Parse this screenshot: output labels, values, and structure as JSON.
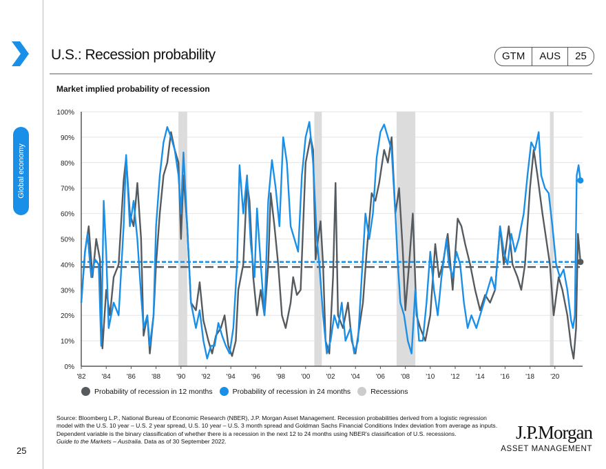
{
  "header": {
    "title": "U.S.: Recession probability",
    "badge": [
      "GTM",
      "AUS",
      "25"
    ],
    "side_tab": "Global economy",
    "page_number": "25"
  },
  "colors": {
    "accent": "#1a8fe8",
    "series_12m": "#555a5f",
    "series_24m": "#1a8fe8",
    "recession": "#dcdcdc"
  },
  "chart_data": {
    "type": "line",
    "title": "Market implied probability of recession",
    "ylim": [
      0,
      100
    ],
    "y_ticks": [
      "0%",
      "10%",
      "20%",
      "30%",
      "40%",
      "50%",
      "60%",
      "70%",
      "80%",
      "90%",
      "100%"
    ],
    "x_ticks": [
      "'82",
      "'84",
      "'86",
      "'88",
      "'90",
      "'92",
      "'94",
      "'96",
      "'98",
      "'00",
      "'02",
      "'04",
      "'06",
      "'08",
      "'10",
      "'12",
      "'14",
      "'16",
      "'18",
      "'20"
    ],
    "grid": true,
    "legend_placement": "bottom",
    "recessions": [
      [
        1989.8,
        1990.5
      ],
      [
        2000.7,
        2001.3
      ],
      [
        2007.3,
        2008.8
      ],
      [
        2019.6,
        2019.9
      ]
    ],
    "legend": [
      "Probability of recession in 12 months",
      "Probability of recession in 24 months",
      "Recessions"
    ],
    "series": [
      {
        "name": "Probability of recession in 12 months",
        "average": 39,
        "last": 41,
        "points": [
          [
            1982.0,
            25
          ],
          [
            1982.3,
            45
          ],
          [
            1982.6,
            55
          ],
          [
            1982.9,
            35
          ],
          [
            1983.2,
            50
          ],
          [
            1983.5,
            42
          ],
          [
            1983.7,
            7
          ],
          [
            1984.0,
            30
          ],
          [
            1984.3,
            20
          ],
          [
            1984.6,
            35
          ],
          [
            1985.0,
            40
          ],
          [
            1985.4,
            73
          ],
          [
            1985.6,
            82
          ],
          [
            1985.9,
            60
          ],
          [
            1986.2,
            55
          ],
          [
            1986.5,
            72
          ],
          [
            1986.8,
            50
          ],
          [
            1987.0,
            12
          ],
          [
            1987.3,
            20
          ],
          [
            1987.5,
            5
          ],
          [
            1987.8,
            20
          ],
          [
            1988.0,
            40
          ],
          [
            1988.3,
            60
          ],
          [
            1988.6,
            75
          ],
          [
            1988.9,
            80
          ],
          [
            1989.2,
            92
          ],
          [
            1989.5,
            85
          ],
          [
            1989.8,
            80
          ],
          [
            1990.0,
            50
          ],
          [
            1990.2,
            75
          ],
          [
            1990.5,
            55
          ],
          [
            1990.8,
            25
          ],
          [
            1991.2,
            22
          ],
          [
            1991.5,
            33
          ],
          [
            1991.8,
            18
          ],
          [
            1992.2,
            10
          ],
          [
            1992.5,
            5
          ],
          [
            1992.8,
            12
          ],
          [
            1993.2,
            15
          ],
          [
            1993.5,
            20
          ],
          [
            1993.8,
            8
          ],
          [
            1994.1,
            4
          ],
          [
            1994.4,
            10
          ],
          [
            1994.6,
            30
          ],
          [
            1995.0,
            40
          ],
          [
            1995.3,
            72
          ],
          [
            1995.5,
            65
          ],
          [
            1995.8,
            35
          ],
          [
            1996.1,
            20
          ],
          [
            1996.4,
            30
          ],
          [
            1996.7,
            20
          ],
          [
            1997.0,
            40
          ],
          [
            1997.2,
            68
          ],
          [
            1997.5,
            55
          ],
          [
            1997.8,
            40
          ],
          [
            1998.1,
            20
          ],
          [
            1998.4,
            15
          ],
          [
            1998.8,
            25
          ],
          [
            1999.0,
            35
          ],
          [
            1999.3,
            28
          ],
          [
            1999.6,
            30
          ],
          [
            2000.0,
            80
          ],
          [
            2000.4,
            90
          ],
          [
            2000.6,
            85
          ],
          [
            2000.8,
            42
          ],
          [
            2001.0,
            50
          ],
          [
            2001.2,
            57
          ],
          [
            2001.4,
            40
          ],
          [
            2001.6,
            10
          ],
          [
            2001.9,
            5
          ],
          [
            2002.2,
            35
          ],
          [
            2002.4,
            72
          ],
          [
            2002.6,
            20
          ],
          [
            2003.0,
            15
          ],
          [
            2003.4,
            25
          ],
          [
            2003.7,
            10
          ],
          [
            2004.0,
            5
          ],
          [
            2004.3,
            15
          ],
          [
            2004.6,
            25
          ],
          [
            2004.9,
            45
          ],
          [
            2005.3,
            68
          ],
          [
            2005.6,
            65
          ],
          [
            2005.9,
            72
          ],
          [
            2006.3,
            85
          ],
          [
            2006.6,
            80
          ],
          [
            2006.9,
            90
          ],
          [
            2007.2,
            60
          ],
          [
            2007.5,
            70
          ],
          [
            2007.8,
            45
          ],
          [
            2008.0,
            22
          ],
          [
            2008.3,
            40
          ],
          [
            2008.6,
            60
          ],
          [
            2008.9,
            20
          ],
          [
            2009.2,
            15
          ],
          [
            2009.6,
            10
          ],
          [
            2010.0,
            20
          ],
          [
            2010.4,
            48
          ],
          [
            2010.7,
            35
          ],
          [
            2011.0,
            40
          ],
          [
            2011.4,
            52
          ],
          [
            2011.8,
            30
          ],
          [
            2012.2,
            58
          ],
          [
            2012.5,
            55
          ],
          [
            2012.8,
            48
          ],
          [
            2013.2,
            40
          ],
          [
            2013.6,
            30
          ],
          [
            2014.0,
            22
          ],
          [
            2014.4,
            28
          ],
          [
            2014.8,
            25
          ],
          [
            2015.2,
            30
          ],
          [
            2015.6,
            55
          ],
          [
            2015.9,
            40
          ],
          [
            2016.3,
            55
          ],
          [
            2016.6,
            40
          ],
          [
            2017.0,
            35
          ],
          [
            2017.3,
            30
          ],
          [
            2017.6,
            40
          ],
          [
            2018.0,
            70
          ],
          [
            2018.3,
            85
          ],
          [
            2018.6,
            75
          ],
          [
            2019.0,
            60
          ],
          [
            2019.3,
            50
          ],
          [
            2019.6,
            40
          ],
          [
            2019.9,
            20
          ],
          [
            2020.3,
            35
          ],
          [
            2020.6,
            30
          ],
          [
            2021.0,
            20
          ],
          [
            2021.3,
            8
          ],
          [
            2021.5,
            3
          ],
          [
            2021.7,
            15
          ],
          [
            2021.85,
            52
          ],
          [
            2022.05,
            41
          ]
        ]
      },
      {
        "name": "Probability of recession in 24 months",
        "average": 41,
        "last": 73,
        "points": [
          [
            1982.0,
            25
          ],
          [
            1982.3,
            45
          ],
          [
            1982.5,
            52
          ],
          [
            1982.8,
            35
          ],
          [
            1983.1,
            42
          ],
          [
            1983.4,
            40
          ],
          [
            1983.6,
            8
          ],
          [
            1983.8,
            65
          ],
          [
            1984.0,
            45
          ],
          [
            1984.2,
            15
          ],
          [
            1984.6,
            25
          ],
          [
            1985.0,
            20
          ],
          [
            1985.4,
            55
          ],
          [
            1985.6,
            83
          ],
          [
            1985.9,
            55
          ],
          [
            1986.2,
            65
          ],
          [
            1986.5,
            50
          ],
          [
            1986.8,
            28
          ],
          [
            1987.0,
            15
          ],
          [
            1987.3,
            20
          ],
          [
            1987.5,
            8
          ],
          [
            1987.8,
            20
          ],
          [
            1988.0,
            55
          ],
          [
            1988.3,
            75
          ],
          [
            1988.6,
            88
          ],
          [
            1988.9,
            94
          ],
          [
            1989.2,
            90
          ],
          [
            1989.5,
            85
          ],
          [
            1989.8,
            75
          ],
          [
            1990.0,
            60
          ],
          [
            1990.2,
            84
          ],
          [
            1990.5,
            55
          ],
          [
            1990.8,
            25
          ],
          [
            1991.2,
            15
          ],
          [
            1991.5,
            22
          ],
          [
            1991.8,
            10
          ],
          [
            1992.1,
            3
          ],
          [
            1992.4,
            8
          ],
          [
            1992.7,
            8
          ],
          [
            1993.0,
            17
          ],
          [
            1993.3,
            12
          ],
          [
            1993.6,
            8
          ],
          [
            1993.9,
            5
          ],
          [
            1994.2,
            15
          ],
          [
            1994.5,
            40
          ],
          [
            1994.7,
            79
          ],
          [
            1995.0,
            60
          ],
          [
            1995.3,
            75
          ],
          [
            1995.6,
            48
          ],
          [
            1995.9,
            35
          ],
          [
            1996.1,
            62
          ],
          [
            1996.4,
            40
          ],
          [
            1996.7,
            20
          ],
          [
            1997.0,
            65
          ],
          [
            1997.3,
            81
          ],
          [
            1997.6,
            70
          ],
          [
            1997.9,
            55
          ],
          [
            1998.2,
            90
          ],
          [
            1998.5,
            80
          ],
          [
            1998.8,
            55
          ],
          [
            1999.1,
            50
          ],
          [
            1999.4,
            45
          ],
          [
            1999.7,
            75
          ],
          [
            2000.0,
            90
          ],
          [
            2000.3,
            96
          ],
          [
            2000.6,
            80
          ],
          [
            2000.9,
            50
          ],
          [
            2001.1,
            40
          ],
          [
            2001.4,
            20
          ],
          [
            2001.7,
            5
          ],
          [
            2002.0,
            10
          ],
          [
            2002.3,
            20
          ],
          [
            2002.6,
            15
          ],
          [
            2002.9,
            25
          ],
          [
            2003.2,
            10
          ],
          [
            2003.6,
            15
          ],
          [
            2003.9,
            5
          ],
          [
            2004.2,
            10
          ],
          [
            2004.5,
            35
          ],
          [
            2004.8,
            60
          ],
          [
            2005.1,
            50
          ],
          [
            2005.4,
            60
          ],
          [
            2005.7,
            82
          ],
          [
            2006.0,
            92
          ],
          [
            2006.3,
            95
          ],
          [
            2006.6,
            90
          ],
          [
            2006.9,
            85
          ],
          [
            2007.2,
            60
          ],
          [
            2007.4,
            40
          ],
          [
            2007.6,
            25
          ],
          [
            2007.9,
            20
          ],
          [
            2008.2,
            10
          ],
          [
            2008.5,
            5
          ],
          [
            2008.8,
            30
          ],
          [
            2009.1,
            10
          ],
          [
            2009.4,
            10
          ],
          [
            2009.7,
            25
          ],
          [
            2010.0,
            45
          ],
          [
            2010.3,
            30
          ],
          [
            2010.6,
            20
          ],
          [
            2010.9,
            35
          ],
          [
            2011.3,
            50
          ],
          [
            2011.5,
            40
          ],
          [
            2011.8,
            35
          ],
          [
            2012.1,
            45
          ],
          [
            2012.4,
            40
          ],
          [
            2012.7,
            25
          ],
          [
            2013.0,
            15
          ],
          [
            2013.3,
            20
          ],
          [
            2013.7,
            15
          ],
          [
            2014.0,
            20
          ],
          [
            2014.3,
            25
          ],
          [
            2014.6,
            30
          ],
          [
            2014.9,
            35
          ],
          [
            2015.2,
            30
          ],
          [
            2015.6,
            55
          ],
          [
            2015.9,
            45
          ],
          [
            2016.2,
            40
          ],
          [
            2016.5,
            52
          ],
          [
            2016.8,
            45
          ],
          [
            2017.1,
            50
          ],
          [
            2017.5,
            60
          ],
          [
            2017.8,
            75
          ],
          [
            2018.1,
            88
          ],
          [
            2018.4,
            85
          ],
          [
            2018.7,
            92
          ],
          [
            2018.9,
            75
          ],
          [
            2019.2,
            70
          ],
          [
            2019.5,
            68
          ],
          [
            2019.8,
            55
          ],
          [
            2020.1,
            40
          ],
          [
            2020.4,
            35
          ],
          [
            2020.7,
            38
          ],
          [
            2021.0,
            30
          ],
          [
            2021.3,
            18
          ],
          [
            2021.45,
            15
          ],
          [
            2021.6,
            20
          ],
          [
            2021.75,
            75
          ],
          [
            2021.9,
            79
          ],
          [
            2022.05,
            73
          ]
        ]
      }
    ]
  },
  "footer": {
    "source": "Source: Bloomberg L.P., National Bureau of Economic Research (NBER), J.P. Morgan Asset Management. Recession probabilities derived from a logistic regression model with the U.S. 10 year – U.S. 2 year spread, U.S. 10 year – U.S. 3 month spread and Goldman Sachs Financial Conditions Index deviation from average as inputs. Dependent variable is the binary classification of whether there is a recession in the next 12 to 24 months using NBER's classification of U.S. recessions.",
    "guide": "Guide to the Markets – Australia",
    "asof": ". Data as of 30 September 2022.",
    "logo_main": "J.P.Morgan",
    "logo_sub": "ASSET MANAGEMENT"
  }
}
